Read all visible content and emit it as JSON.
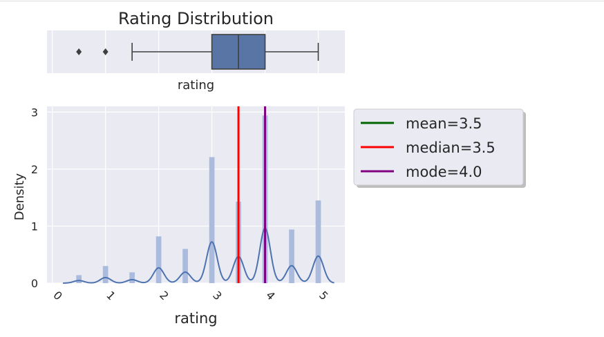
{
  "chart_data": [
    {
      "type": "box",
      "title": "Rating Distribution",
      "xlabel": "rating",
      "xlim": [
        -0.1,
        5.5
      ],
      "box": {
        "whisker_low": 1.5,
        "q1": 3.0,
        "median": 3.5,
        "q3": 4.0,
        "whisker_high": 5.0
      },
      "outliers": [
        0.5,
        1.0
      ],
      "grid": true
    },
    {
      "type": "histogram+kde",
      "xlabel": "rating",
      "ylabel": "Density",
      "xlim": [
        -0.1,
        5.5
      ],
      "ylim": [
        0,
        3.1
      ],
      "xticks": [
        "0",
        "1",
        "2",
        "3",
        "4",
        "5"
      ],
      "yticks": [
        "0",
        "1",
        "2",
        "3"
      ],
      "bars": [
        {
          "x": 0.5,
          "density": 0.14
        },
        {
          "x": 1.0,
          "density": 0.3
        },
        {
          "x": 1.5,
          "density": 0.19
        },
        {
          "x": 2.0,
          "density": 0.82
        },
        {
          "x": 2.5,
          "density": 0.6
        },
        {
          "x": 3.0,
          "density": 2.21
        },
        {
          "x": 3.5,
          "density": 1.43
        },
        {
          "x": 4.0,
          "density": 2.94
        },
        {
          "x": 4.5,
          "density": 0.94
        },
        {
          "x": 5.0,
          "density": 1.45
        }
      ],
      "kde": {
        "bandwidth": 0.1,
        "weights": [
          0.0113,
          0.0244,
          0.0153,
          0.0672,
          0.0485,
          0.1812,
          0.1167,
          0.2413,
          0.0767,
          0.1189
        ]
      },
      "vlines": [
        {
          "label": "mean=3.5",
          "x": 3.5,
          "color": "#006400",
          "visible": false
        },
        {
          "label": "median=3.5",
          "x": 3.5,
          "color": "#ff0000",
          "visible": true
        },
        {
          "label": "mode=4.0",
          "x": 4.0,
          "color": "#800080",
          "visible": true
        }
      ],
      "legend_placement": "outside-right-top",
      "grid": true,
      "colors": {
        "bar": "#aabbdd",
        "kde": "#4c72b0",
        "box": "#5875a6",
        "background": "#eaeaf2"
      }
    }
  ]
}
